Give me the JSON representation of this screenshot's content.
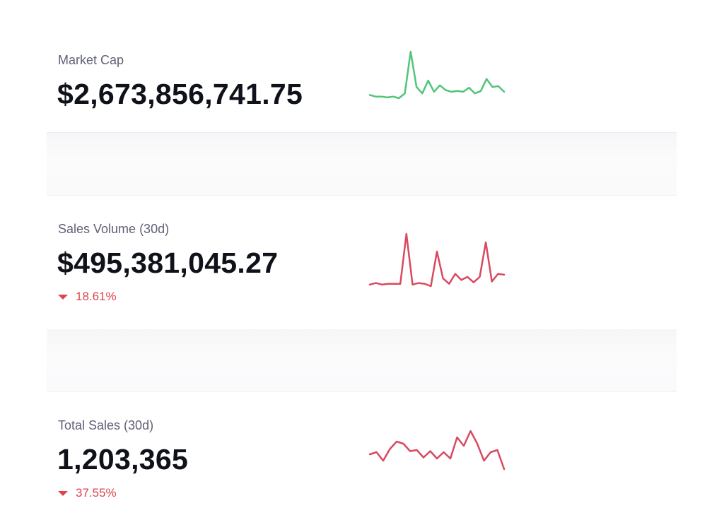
{
  "stats": [
    {
      "label": "Market Cap",
      "value": "$2,673,856,741.75",
      "change": "",
      "trend_color": "#52c47a",
      "sparkline": [
        8,
        6,
        6,
        5,
        6,
        4,
        10,
        62,
        18,
        10,
        26,
        12,
        20,
        14,
        12,
        13,
        12,
        17,
        10,
        13,
        28,
        18,
        19,
        12
      ]
    },
    {
      "label": "Sales Volume (30d)",
      "value": "$495,381,045.27",
      "change": "18.61%",
      "change_direction": "down",
      "trend_color": "#d9495f",
      "sparkline": [
        2,
        4,
        2,
        3,
        3,
        3,
        68,
        2,
        4,
        3,
        0,
        45,
        10,
        3,
        16,
        8,
        12,
        5,
        12,
        57,
        6,
        16,
        15
      ]
    },
    {
      "label": "Total Sales (30d)",
      "value": "1,203,365",
      "change": "37.55%",
      "change_direction": "down",
      "trend_color": "#d9495f",
      "sparkline": [
        28,
        30,
        22,
        33,
        40,
        38,
        31,
        32,
        25,
        31,
        24,
        30,
        24,
        44,
        36,
        50,
        38,
        22,
        30,
        32,
        14
      ]
    }
  ]
}
